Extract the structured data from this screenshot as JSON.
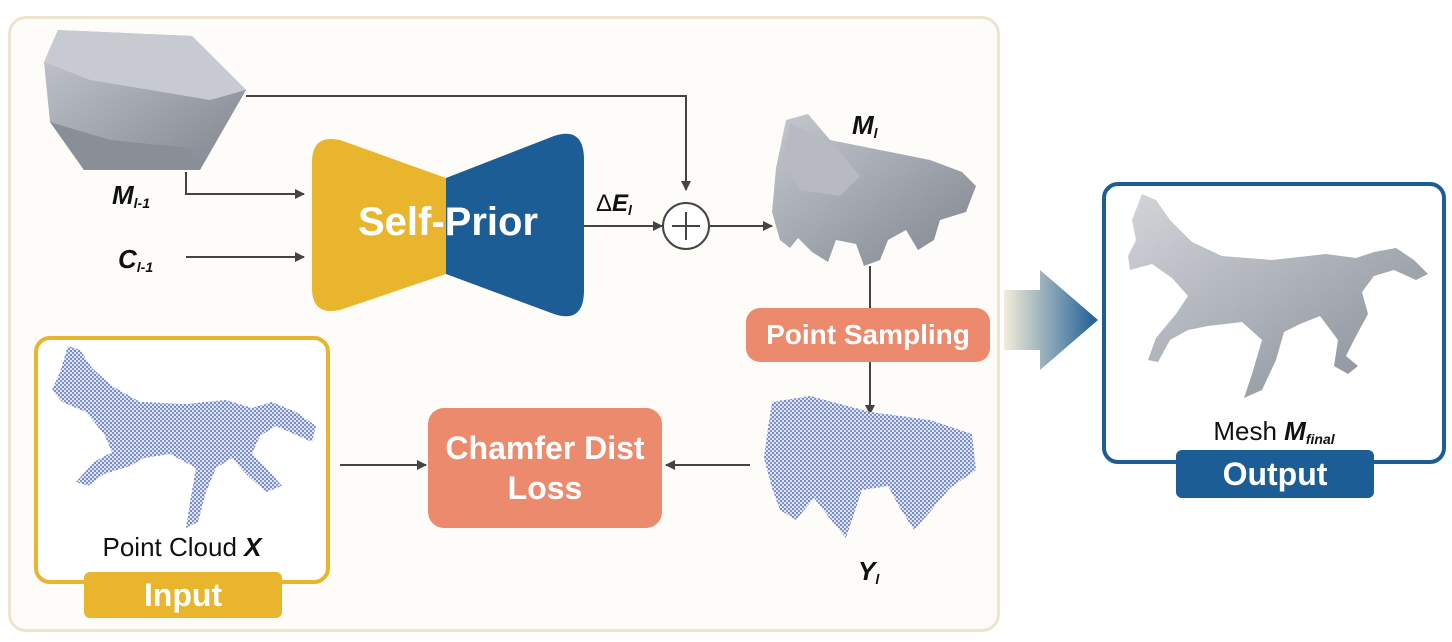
{
  "block": {
    "label": "Self-Prior"
  },
  "labels": {
    "m_prev": {
      "base": "M",
      "sub": "l-1"
    },
    "c_prev": {
      "base": "C",
      "sub": "l-1"
    },
    "delta_e": {
      "prefix": "Δ",
      "base": "E",
      "sub": "l"
    },
    "m_l": {
      "base": "M",
      "sub": "l"
    },
    "y_l": {
      "base": "Y",
      "sub": "l"
    }
  },
  "boxes": {
    "point_sampling": "Point Sampling",
    "chamfer_line1": "Chamfer Dist",
    "chamfer_line2": "Loss"
  },
  "input": {
    "caption_text": "Point Cloud ",
    "caption_var": "X",
    "tag": "Input"
  },
  "output": {
    "caption_text": "Mesh ",
    "caption_var": "M",
    "caption_sub": "final",
    "tag": "Output"
  },
  "colors": {
    "gold": "#e8b52c",
    "blue": "#1d5d95",
    "salmon": "#ec8a6d",
    "panel_border": "#ece4cf",
    "mesh": "#9ea3ad",
    "points": "#2f4fa3"
  }
}
